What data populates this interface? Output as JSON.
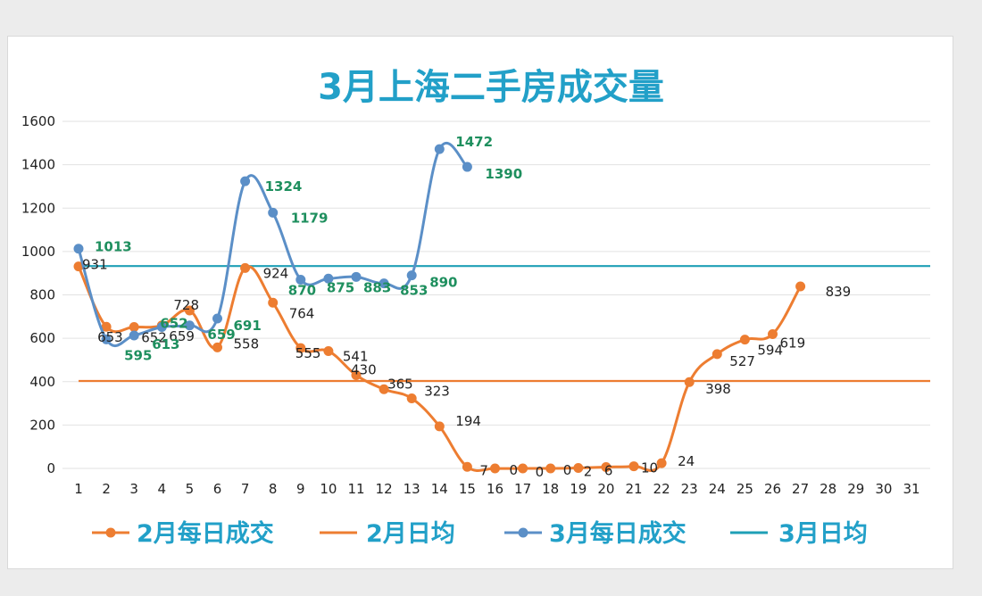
{
  "chart_data": {
    "type": "line",
    "title": "3月上海二手房成交量",
    "xlabel": "",
    "ylabel": "",
    "ylim": [
      0,
      1600
    ],
    "yticks": [
      0,
      200,
      400,
      600,
      800,
      1000,
      1200,
      1400,
      1600
    ],
    "categories": [
      "1",
      "2",
      "3",
      "4",
      "5",
      "6",
      "7",
      "8",
      "9",
      "10",
      "11",
      "12",
      "13",
      "14",
      "15",
      "16",
      "17",
      "18",
      "19",
      "20",
      "21",
      "22",
      "23",
      "24",
      "25",
      "26",
      "27",
      "28",
      "29",
      "30",
      "31"
    ],
    "series": [
      {
        "name": "2月每日成交",
        "color": "#ed7d31",
        "labelColor": "#222222",
        "values": [
          931,
          653,
          652,
          659,
          728,
          558,
          924,
          764,
          555,
          541,
          430,
          365,
          323,
          194,
          7,
          0,
          0,
          0,
          2,
          6,
          10,
          24,
          398,
          527,
          594,
          619,
          839,
          null,
          null,
          null,
          null
        ],
        "labels": [
          "931",
          "653",
          "652",
          "659",
          "728",
          "558",
          "924",
          "764",
          "555",
          "541",
          "430",
          "365",
          "323",
          "194",
          "7",
          "0",
          "0",
          "0",
          "2",
          "6",
          "10",
          "24",
          "398",
          "527",
          "594",
          "619",
          "839",
          null,
          null,
          null,
          null
        ],
        "labelSuppress": [
          false,
          true,
          true,
          true,
          true,
          true,
          true,
          true,
          true,
          true,
          true,
          true,
          true,
          true,
          true,
          true,
          true,
          true,
          true,
          true,
          true,
          true,
          true,
          true,
          true,
          true,
          true,
          true,
          true,
          true,
          true
        ]
      },
      {
        "name": "3月每日成交",
        "color": "#5b8fc7",
        "labelColor": "#1e8f5e",
        "values": [
          1013,
          595,
          613,
          652,
          659,
          691,
          1324,
          1179,
          870,
          875,
          883,
          853,
          890,
          1472,
          1390,
          null,
          null,
          null,
          null,
          null,
          null,
          null,
          null,
          null,
          null,
          null,
          null,
          null,
          null,
          null,
          null
        ],
        "labels": [
          "1013",
          "595",
          "613",
          "652",
          "659",
          "691",
          "1324",
          "1179",
          "870",
          "875",
          "883",
          "853",
          "890",
          "1472",
          "1390",
          null,
          null,
          null,
          null,
          null,
          null,
          null,
          null,
          null,
          null,
          null,
          null,
          null,
          null,
          null,
          null
        ]
      }
    ],
    "reference_lines": [
      {
        "name": "2月日均",
        "value": 403,
        "color": "#ed7d31"
      },
      {
        "name": "3月日均",
        "value": 933,
        "color": "#1e9fb6"
      }
    ],
    "legend": {
      "position": "bottom",
      "items": [
        {
          "label": "2月每日成交",
          "color": "#ed7d31",
          "marker": true
        },
        {
          "label": "2月日均",
          "color": "#ed7d31",
          "marker": false
        },
        {
          "label": "3月每日成交",
          "color": "#5b8fc7",
          "marker": true
        },
        {
          "label": "3月日均",
          "color": "#1e9fb6",
          "marker": false
        }
      ]
    },
    "grid": true
  }
}
